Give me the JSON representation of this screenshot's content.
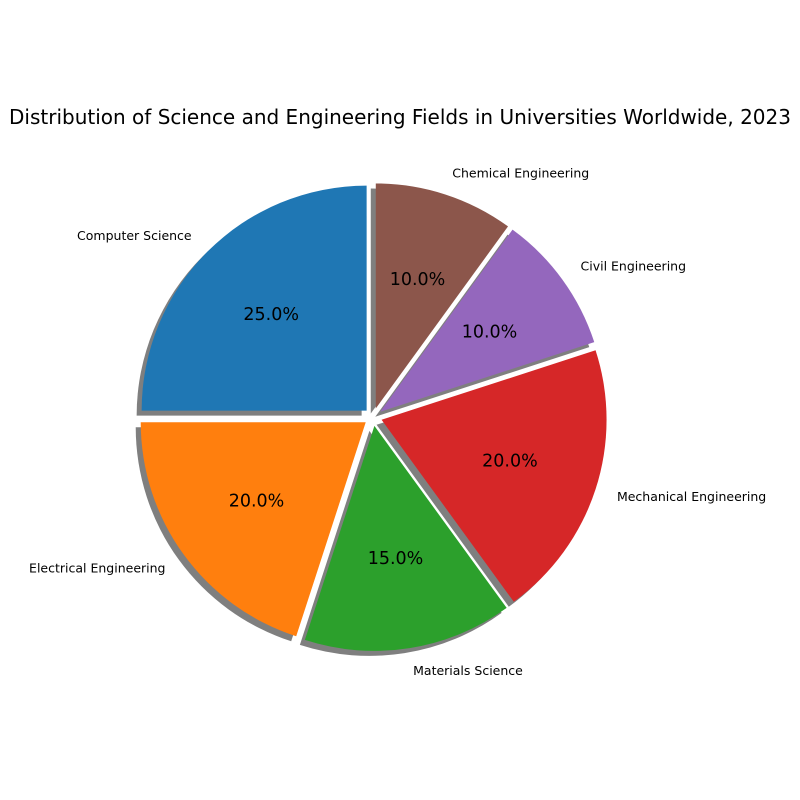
{
  "chart_data": {
    "type": "pie",
    "title": "Distribution of Science and Engineering Fields in Universities Worldwide, 2023",
    "categories": [
      "Computer Science",
      "Electrical Engineering",
      "Materials Science",
      "Mechanical Engineering",
      "Civil Engineering",
      "Chemical Engineering"
    ],
    "values": [
      25,
      20,
      15,
      20,
      10,
      10
    ],
    "value_labels": [
      "25.0%",
      "20.0%",
      "15.0%",
      "20.0%",
      "10.0%",
      "10.0%"
    ],
    "colors": [
      "#1f77b4",
      "#ff7f0e",
      "#2ca02c",
      "#d62728",
      "#9467bd",
      "#8c564b"
    ],
    "start_angle_deg": 90,
    "direction": "counterclockwise",
    "exploded": true,
    "shadow": true
  }
}
